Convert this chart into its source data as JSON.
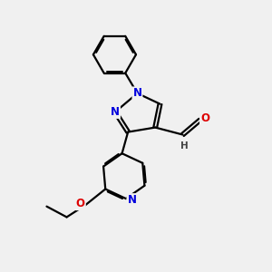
{
  "bg_color": "#f0f0f0",
  "atom_colors": {
    "C": "#000000",
    "N": "#0000dd",
    "O": "#dd0000",
    "H": "#444444"
  },
  "bond_color": "#000000",
  "bond_width": 1.6,
  "dbo": 0.055,
  "font_size_atom": 8.5,
  "font_size_h": 7.5
}
